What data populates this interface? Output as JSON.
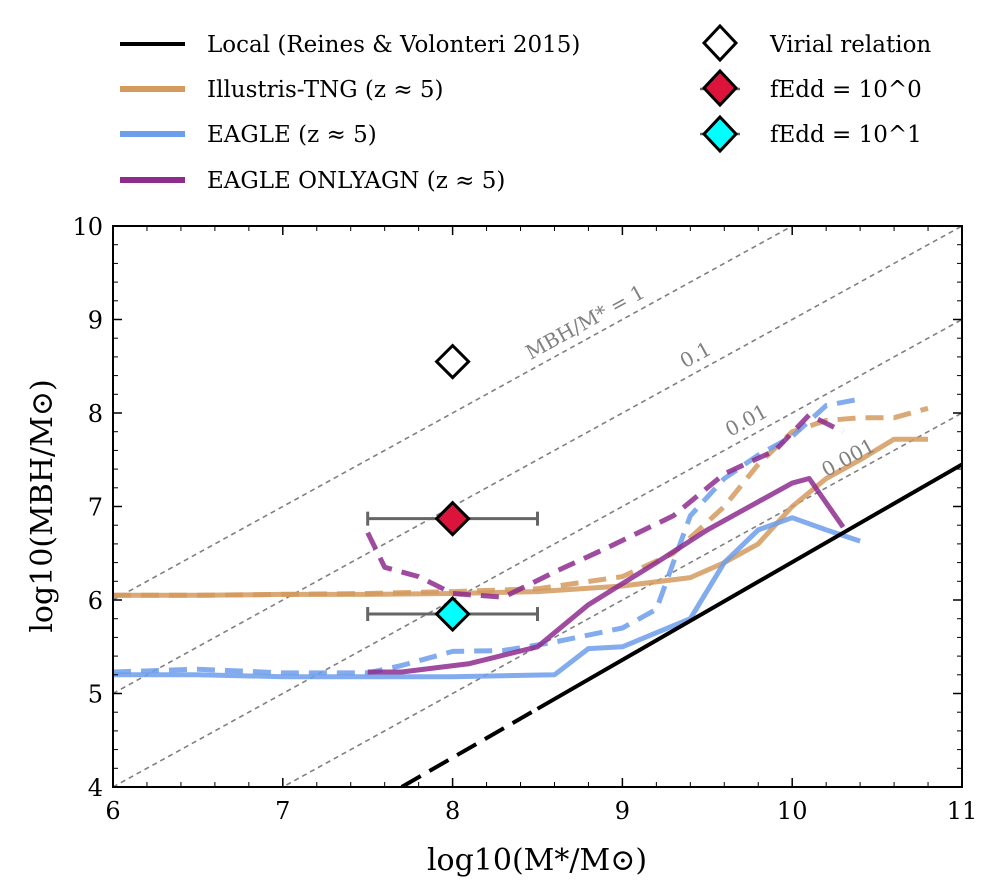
{
  "chart_data": {
    "type": "line",
    "xlabel": "log10(M*/M⊙)",
    "ylabel": "log10(MBH/M⊙)",
    "xlim": [
      6,
      11
    ],
    "ylim": [
      4,
      10
    ],
    "xticks": [
      "6",
      "7",
      "8",
      "9",
      "10",
      "11"
    ],
    "yticks": [
      "4",
      "5",
      "6",
      "7",
      "8",
      "9",
      "10"
    ],
    "ratio_lines": [
      {
        "label": "MBH/M* = 1",
        "log_ratio": 0,
        "label_at_x": 8.8
      },
      {
        "label": "0.1",
        "log_ratio": -1,
        "label_at_x": 9.45
      },
      {
        "label": "0.01",
        "log_ratio": -2,
        "label_at_x": 9.75
      },
      {
        "label": "0.001",
        "log_ratio": -3,
        "label_at_x": 10.35
      }
    ],
    "local_relation": {
      "name": "Local (Reines & Volonteri 2015)",
      "color": "#000000",
      "solid_from_x": 8.5,
      "x": [
        7.7,
        11.0
      ],
      "y": [
        4.0,
        7.45
      ]
    },
    "series": [
      {
        "name": "Illustris-TNG (z ≈ 5)",
        "color": "#d49a5e",
        "solid": {
          "x": [
            6.0,
            6.5,
            7.0,
            7.5,
            8.0,
            8.5,
            9.0,
            9.4,
            9.6,
            9.8,
            10.0,
            10.2,
            10.4,
            10.6,
            10.8
          ],
          "y": [
            6.05,
            6.05,
            6.06,
            6.06,
            6.07,
            6.09,
            6.15,
            6.24,
            6.4,
            6.6,
            7.0,
            7.3,
            7.5,
            7.72,
            7.72
          ]
        },
        "dashed": {
          "x": [
            6.0,
            6.5,
            7.0,
            7.5,
            8.0,
            8.5,
            9.0,
            9.3,
            9.6,
            9.8,
            10.0,
            10.2,
            10.4,
            10.6,
            10.8
          ],
          "y": [
            6.05,
            6.05,
            6.06,
            6.07,
            6.09,
            6.12,
            6.25,
            6.5,
            7.0,
            7.45,
            7.8,
            7.92,
            7.95,
            7.95,
            8.05
          ]
        }
      },
      {
        "name": "EAGLE (z ≈ 5)",
        "color": "#6d9eeb",
        "solid": {
          "x": [
            6.0,
            6.5,
            7.0,
            7.5,
            8.0,
            8.6,
            8.8,
            9.0,
            9.4,
            9.6,
            9.8,
            10.0,
            10.2,
            10.4
          ],
          "y": [
            5.2,
            5.2,
            5.18,
            5.18,
            5.18,
            5.2,
            5.48,
            5.5,
            5.8,
            6.4,
            6.75,
            6.88,
            6.75,
            6.63
          ]
        },
        "dashed": {
          "x": [
            6.0,
            6.5,
            7.0,
            7.5,
            7.7,
            8.0,
            8.3,
            8.6,
            9.0,
            9.2,
            9.4,
            9.6,
            9.8,
            10.0,
            10.2,
            10.4
          ],
          "y": [
            5.23,
            5.26,
            5.22,
            5.22,
            5.3,
            5.45,
            5.46,
            5.55,
            5.7,
            5.9,
            6.9,
            7.3,
            7.55,
            7.75,
            8.08,
            8.15
          ]
        }
      },
      {
        "name": "EAGLE ONLYAGN (z ≈ 5)",
        "color": "#8e2c8e",
        "solid": {
          "x": [
            7.5,
            7.7,
            8.1,
            8.5,
            8.8,
            9.2,
            9.5,
            9.8,
            10.0,
            10.1,
            10.3
          ],
          "y": [
            5.23,
            5.23,
            5.32,
            5.5,
            5.95,
            6.4,
            6.75,
            7.05,
            7.25,
            7.3,
            6.78
          ]
        },
        "dashed": {
          "x": [
            7.5,
            7.6,
            7.8,
            8.0,
            8.3,
            8.6,
            8.9,
            9.3,
            9.6,
            9.9,
            10.1,
            10.3
          ],
          "y": [
            6.72,
            6.35,
            6.25,
            6.07,
            6.03,
            6.3,
            6.55,
            6.9,
            7.35,
            7.6,
            7.98,
            7.8
          ]
        }
      }
    ],
    "points": [
      {
        "name": "Virial relation",
        "x": 8.0,
        "y": 8.55,
        "fill": "#ffffff",
        "xerr": null
      },
      {
        "name": "fEdd = 10^0",
        "x": 8.0,
        "y": 6.87,
        "fill": "#dc143c",
        "xerr": 0.5
      },
      {
        "name": "fEdd = 10^1",
        "x": 8.0,
        "y": 5.85,
        "fill": "#00ffff",
        "xerr": 0.5
      }
    ],
    "legend": {
      "position": "top (above plot)",
      "lines": [
        "Local (Reines & Volonteri 2015)",
        "Illustris-TNG (z ≈ 5)",
        "EAGLE (z ≈ 5)",
        "EAGLE ONLYAGN (z ≈ 5)"
      ],
      "markers": [
        "Virial relation",
        "fEdd = 10^0",
        "fEdd = 10^1"
      ]
    }
  }
}
